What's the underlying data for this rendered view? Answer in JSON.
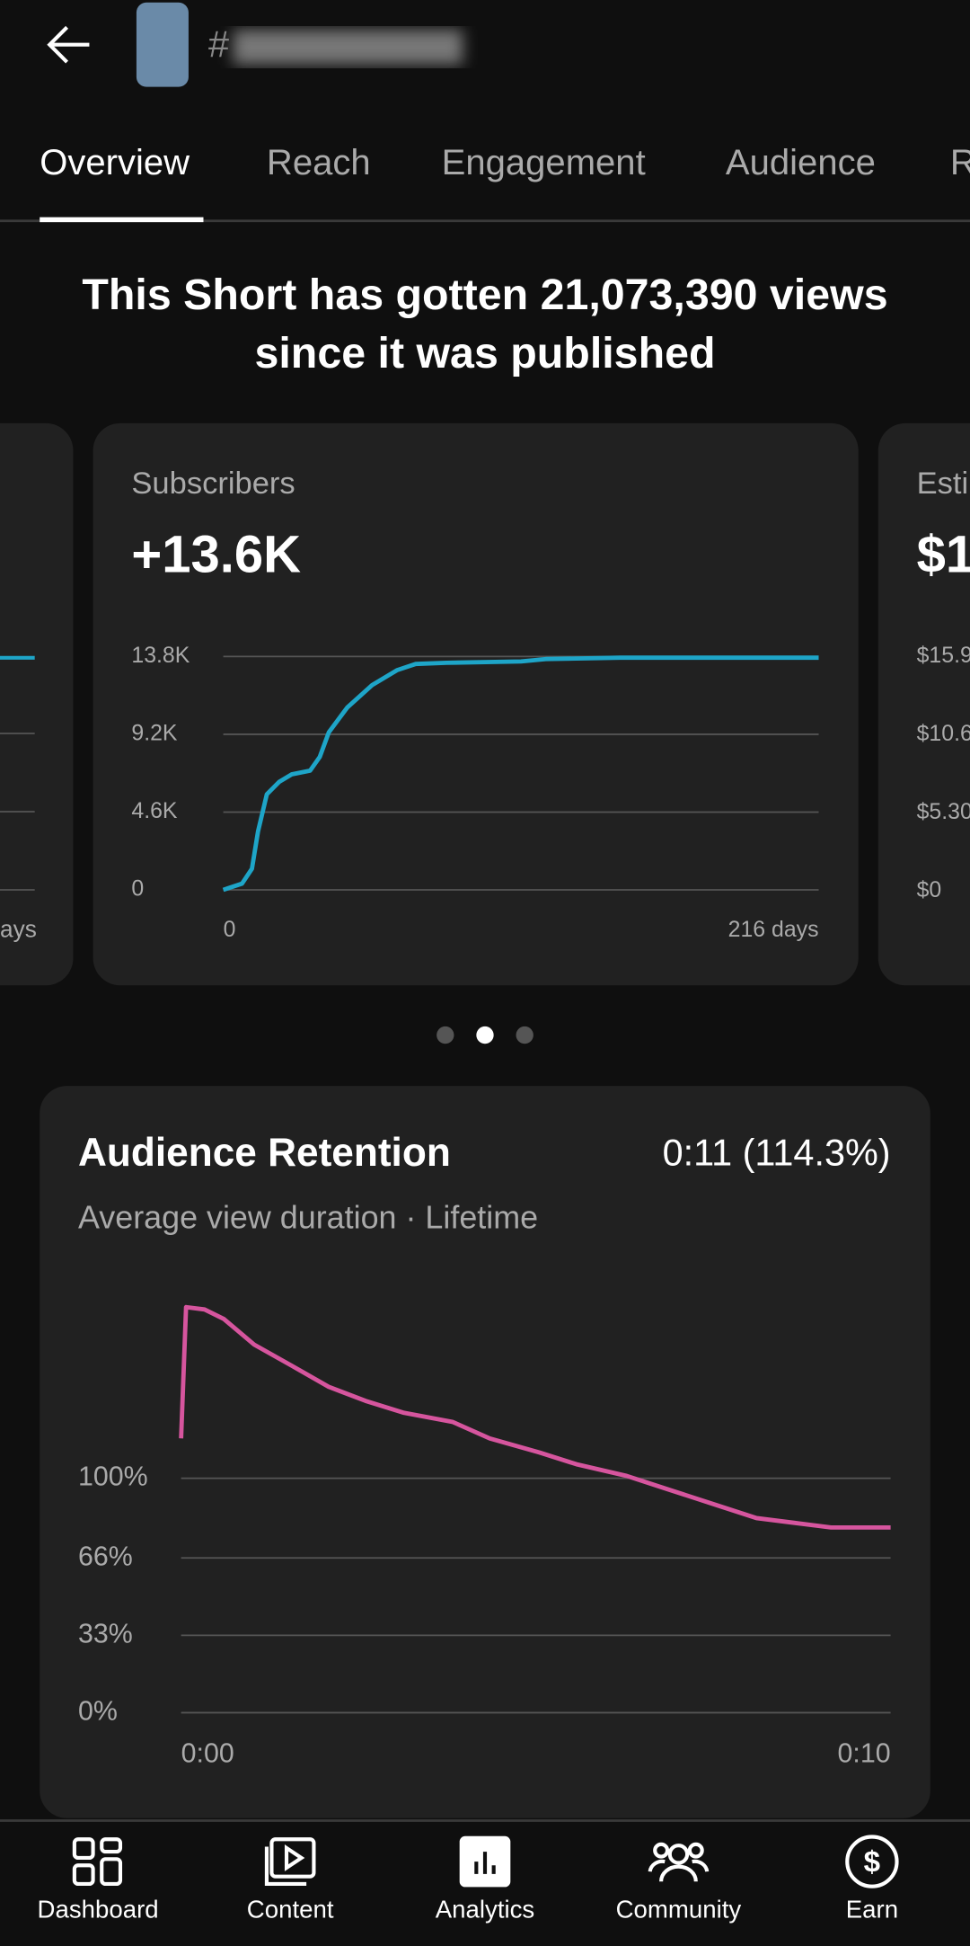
{
  "header": {
    "title": "#"
  },
  "tabs": [
    "Overview",
    "Reach",
    "Engagement",
    "Audience",
    "R"
  ],
  "summary": [
    "This Short has gotten 21,073,390 views",
    "since it was published"
  ],
  "side_cards": {
    "left": {
      "axis_label": "ays"
    },
    "right": {
      "label": "Esti",
      "headline": "$1",
      "ticks": [
        "$15.9",
        "$10.6",
        "$5.30",
        "$0"
      ]
    }
  },
  "chart_data": [
    {
      "type": "line",
      "title": "Subscribers",
      "headline": "+13.6K",
      "color": "#1ea5c8",
      "x": [
        0,
        6.8,
        10.4,
        12.6,
        15.8,
        20.3,
        24.8,
        31.5,
        35,
        38.3,
        45,
        54,
        63,
        69.8,
        81,
        108,
        117,
        144,
        216
      ],
      "values": [
        0,
        370,
        1250,
        3450,
        5650,
        6390,
        6830,
        7050,
        7860,
        9320,
        10790,
        12110,
        12990,
        13360,
        13430,
        13510,
        13650,
        13730,
        13730
      ],
      "xlim": [
        0,
        216
      ],
      "xticks": [
        0,
        {
          "value": 216,
          "label": "216 days"
        }
      ],
      "ylim": [
        0,
        13800
      ],
      "yticks": [
        0,
        {
          "value": 4600,
          "label": "4.6K"
        },
        {
          "value": 9200,
          "label": "9.2K"
        },
        {
          "value": 13800,
          "label": "13.8K"
        }
      ],
      "grid": true
    },
    {
      "type": "line",
      "title": "Audience Retention",
      "headline": "0:11 (114.3%)",
      "subtitle": "Average view duration · Lifetime",
      "color": "#d6559e",
      "x": [
        0,
        0.07,
        0.33,
        0.6,
        1.03,
        1.56,
        2.08,
        2.6,
        3.13,
        3.83,
        4.35,
        5.05,
        5.57,
        6.28,
        6.89,
        7.5,
        8.11,
        8.64,
        9.16,
        10
      ],
      "values": [
        117,
        173,
        172,
        168,
        157,
        148,
        139,
        133,
        128,
        124,
        117,
        111,
        106,
        101,
        95,
        89,
        83,
        81,
        79,
        79
      ],
      "xlim": [
        0,
        10
      ],
      "xticks": [
        {
          "value": 0,
          "label": "0:00"
        },
        {
          "value": 10,
          "label": "0:10"
        }
      ],
      "ylim": [
        0,
        180
      ],
      "yticks": [
        {
          "value": 0,
          "label": "0%"
        },
        {
          "value": 33,
          "label": "33%"
        },
        {
          "value": 66,
          "label": "66%"
        },
        {
          "value": 100,
          "label": "100%"
        }
      ],
      "grid": true
    }
  ],
  "nav": [
    "Dashboard",
    "Content",
    "Analytics",
    "Community",
    "Earn"
  ]
}
